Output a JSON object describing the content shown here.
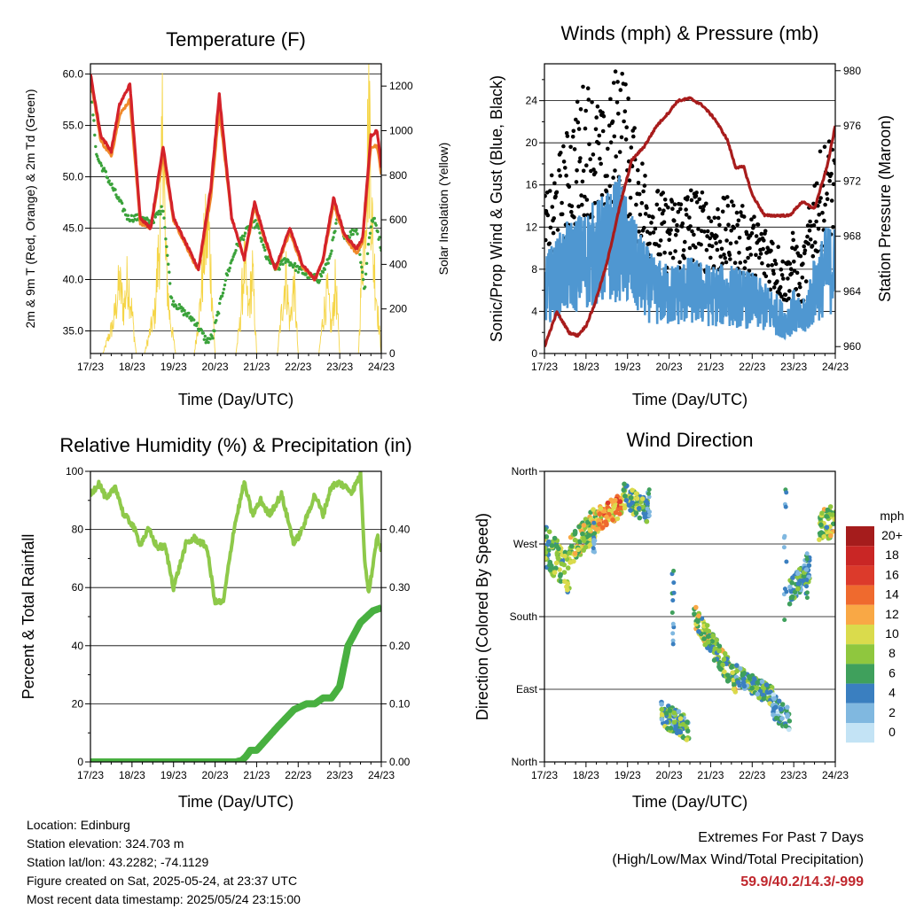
{
  "x_tick_labels": [
    "17/23",
    "18/23",
    "19/23",
    "20/23",
    "21/23",
    "22/23",
    "23/23",
    "24/23"
  ],
  "info": {
    "location": "Location: Edinburg",
    "elevation": "Station elevation: 324.703 m",
    "latlon": "Station lat/lon: 43.2282; -74.1129",
    "created": "Figure created on Sat, 2025-05-24, at 23:37 UTC",
    "recent": "Most recent data timestamp: 2025/05/24 23:15:00"
  },
  "extremes": {
    "title": "Extremes For Past 7 Days",
    "subtitle": "(High/Low/Max Wind/Total Precipitation)",
    "values": "59.9/40.2/14.3/-999"
  },
  "colors": {
    "t2m": "#d4222a",
    "t9m": "#f08a2c",
    "td": "#3aa23a",
    "solar": "#f5d547",
    "gust": "#000000",
    "wind": "#4f97d1",
    "pressure": "#a81c1c",
    "rh": "#8ec94a",
    "precip": "#48b040"
  },
  "chart_data": [
    {
      "type": "line",
      "title": "Temperature (F)",
      "xlabel": "Time (Day/UTC)",
      "ylabel": "2m & 9m T (Red, Orange) & 2m Td (Green)",
      "y2label": "Solar Insolation (Yellow)",
      "xlim": [
        0,
        7
      ],
      "ylim": [
        32.8,
        61.0
      ],
      "y_ticks": [
        "35.0",
        "40.0",
        "45.0",
        "50.0",
        "55.0",
        "60.0"
      ],
      "y2lim": [
        0,
        1300
      ],
      "y2_ticks": [
        "0",
        "200",
        "400",
        "600",
        "800",
        "1000",
        "1200"
      ],
      "grid": "horizontal",
      "series": [
        {
          "key": "t2m",
          "x": [
            0,
            0.25,
            0.5,
            0.7,
            0.95,
            1.2,
            1.45,
            1.75,
            2.0,
            2.3,
            2.6,
            2.9,
            3.1,
            3.4,
            3.7,
            3.95,
            4.2,
            4.45,
            4.8,
            5.1,
            5.4,
            5.6,
            5.85,
            6.1,
            6.4,
            6.55,
            6.75,
            6.9,
            7.0
          ],
          "y": [
            60,
            54,
            52.5,
            57,
            59,
            46,
            45,
            53,
            46,
            43.5,
            41,
            49,
            58,
            46,
            42,
            47.5,
            44,
            41,
            45,
            41.5,
            40,
            42,
            48,
            44.5,
            43,
            44,
            54,
            54.5,
            51
          ]
        },
        {
          "key": "t9m",
          "x": [
            0,
            0.25,
            0.5,
            0.7,
            0.95,
            1.2,
            1.45,
            1.75,
            2.0,
            2.3,
            2.6,
            2.9,
            3.1,
            3.4,
            3.7,
            3.95,
            4.2,
            4.45,
            4.8,
            5.1,
            5.4,
            5.6,
            5.85,
            6.1,
            6.4,
            6.55,
            6.75,
            6.9,
            7.0
          ],
          "y": [
            59.6,
            53.5,
            52,
            56,
            57.5,
            45.5,
            45,
            52,
            45.8,
            43.3,
            40.8,
            48,
            56.5,
            46,
            42,
            47,
            43.8,
            40.9,
            44.6,
            41.3,
            40,
            41.8,
            47.3,
            44.3,
            42.5,
            43.7,
            53,
            53,
            50.3
          ]
        },
        {
          "key": "td",
          "x": [
            0,
            0.15,
            0.4,
            0.65,
            0.9,
            1.2,
            1.45,
            1.75,
            1.95,
            2.2,
            2.5,
            2.8,
            2.95,
            3.25,
            3.5,
            3.8,
            4.0,
            4.25,
            4.5,
            4.7,
            5.0,
            5.2,
            5.5,
            5.75,
            5.95,
            6.15,
            6.4,
            6.6,
            6.7,
            6.8,
            6.9,
            7.0
          ],
          "y": [
            59,
            52,
            50,
            48,
            46,
            46,
            45.5,
            47,
            38,
            37,
            36,
            34,
            34.5,
            40,
            43,
            45,
            45.5,
            42,
            41,
            42,
            41,
            40.5,
            40,
            42,
            46,
            44,
            45,
            39,
            44,
            46,
            45,
            43
          ]
        },
        {
          "key": "solar",
          "x": [
            0,
            0.3,
            0.55,
            0.7,
            0.8,
            0.9,
            1.0,
            1.1,
            1.3,
            1.55,
            1.7,
            1.75,
            1.8,
            1.9,
            2.05,
            2.5,
            2.65,
            2.75,
            2.85,
            3.0,
            3.5,
            3.6,
            3.7,
            3.8,
            3.9,
            4.0,
            4.5,
            4.6,
            4.7,
            4.8,
            4.9,
            5.0,
            5.5,
            5.6,
            5.7,
            5.8,
            5.9,
            6.0,
            6.45,
            6.55,
            6.65,
            6.72,
            6.8,
            6.9,
            7.0
          ],
          "y": [
            0,
            0,
            150,
            350,
            220,
            380,
            200,
            0,
            0,
            200,
            700,
            1300,
            500,
            200,
            0,
            0,
            250,
            550,
            600,
            0,
            0,
            150,
            450,
            200,
            400,
            0,
            0,
            200,
            400,
            150,
            350,
            0,
            0,
            180,
            300,
            120,
            350,
            0,
            0,
            500,
            900,
            1150,
            500,
            250,
            0
          ]
        }
      ]
    },
    {
      "type": "scatter",
      "title": "Winds (mph) & Pressure (mb)",
      "xlabel": "Time (Day/UTC)",
      "ylabel": "Sonic/Prop Wind & Gust (Blue, Black)",
      "y2label": "Station Pressure (Maroon)",
      "xlim": [
        0,
        7
      ],
      "ylim": [
        0,
        27.5
      ],
      "y_ticks": [
        "0",
        "4",
        "8",
        "12",
        "16",
        "20",
        "24"
      ],
      "y2lim": [
        959.5,
        980.5
      ],
      "y2_ticks": [
        "960",
        "964",
        "968",
        "972",
        "976",
        "980"
      ],
      "grid": "horizontal",
      "wind_envelope": {
        "x": [
          0,
          0.5,
          1.0,
          1.5,
          1.8,
          2.2,
          2.6,
          3.0,
          3.5,
          4.0,
          4.5,
          5.0,
          5.5,
          5.8,
          6.0,
          6.2,
          6.5,
          6.8,
          7.0
        ],
        "mean": [
          6,
          8,
          9,
          10,
          11,
          8,
          6,
          5.5,
          6,
          5.5,
          5.5,
          5,
          4,
          3,
          4,
          3,
          6,
          8,
          8
        ]
      },
      "gust_envelope": {
        "x": [
          0,
          0.5,
          1.0,
          1.5,
          1.8,
          2.2,
          2.6,
          3.0,
          3.5,
          4.0,
          4.5,
          5.0,
          5.5,
          5.8,
          6.0,
          6.2,
          6.5,
          6.8,
          7.0
        ],
        "mean": [
          10,
          14,
          18,
          15,
          20,
          14,
          11,
          10,
          11,
          10,
          10,
          9,
          8,
          6,
          8,
          6,
          12,
          14,
          14
        ]
      },
      "pressure": {
        "x": [
          0,
          0.3,
          0.6,
          0.8,
          1.0,
          1.2,
          1.5,
          1.8,
          2.1,
          2.4,
          2.7,
          3.0,
          3.2,
          3.5,
          3.8,
          4.1,
          4.4,
          4.6,
          4.8,
          5.0,
          5.3,
          5.6,
          5.9,
          6.2,
          6.5,
          6.8,
          7.0
        ],
        "y": [
          960,
          962.5,
          961,
          960.8,
          961.5,
          963,
          966,
          970,
          973.5,
          974.5,
          976,
          977,
          977.8,
          978,
          977.5,
          976.5,
          975,
          973,
          973,
          971,
          969.5,
          969.5,
          969.5,
          970.5,
          970,
          973,
          976
        ]
      }
    },
    {
      "type": "line",
      "title": "Relative Humidity (%) & Precipitation (in)",
      "xlabel": "Time (Day/UTC)",
      "ylabel": "Percent & Total Rainfall",
      "xlim": [
        0,
        7
      ],
      "ylim": [
        0,
        100
      ],
      "y_ticks": [
        "0",
        "20",
        "40",
        "60",
        "80",
        "100"
      ],
      "y2lim": [
        0,
        0.5
      ],
      "y2_ticks": [
        "0.00",
        "0.10",
        "0.20",
        "0.30",
        "0.40"
      ],
      "grid": "horizontal",
      "series": [
        {
          "key": "rh",
          "x": [
            0,
            0.2,
            0.4,
            0.6,
            0.8,
            1.0,
            1.2,
            1.4,
            1.6,
            1.8,
            2.0,
            2.3,
            2.5,
            2.8,
            3.0,
            3.2,
            3.45,
            3.7,
            3.9,
            4.1,
            4.3,
            4.6,
            4.9,
            5.1,
            5.4,
            5.6,
            5.8,
            6.0,
            6.3,
            6.5,
            6.6,
            6.7,
            6.8,
            6.9,
            7.0
          ],
          "y": [
            92,
            96,
            90,
            95,
            85,
            82,
            75,
            80,
            74,
            74,
            60,
            75,
            77,
            74,
            55,
            55,
            80,
            96,
            85,
            90,
            85,
            92,
            75,
            80,
            92,
            85,
            95,
            96,
            93,
            99,
            70,
            58,
            68,
            78,
            72
          ]
        },
        {
          "key": "precip",
          "x": [
            0,
            3.0,
            3.5,
            3.65,
            3.75,
            3.85,
            4.0,
            4.5,
            4.9,
            5.2,
            5.4,
            5.5,
            5.6,
            5.8,
            6.0,
            6.2,
            6.5,
            6.8,
            7.0
          ],
          "y": [
            0,
            0,
            0,
            0.003,
            0.01,
            0.02,
            0.02,
            0.06,
            0.09,
            0.1,
            0.1,
            0.105,
            0.11,
            0.11,
            0.13,
            0.2,
            0.24,
            0.26,
            0.265
          ]
        }
      ]
    },
    {
      "type": "scatter",
      "title": "Wind Direction",
      "xlabel": "Time (Day/UTC)",
      "ylabel": "Direction (Colored By Speed)",
      "xlim": [
        0,
        7
      ],
      "ylim": [
        0,
        360
      ],
      "y_ticks": [
        "North",
        "East",
        "South",
        "West",
        "North"
      ],
      "grid": "horizontal",
      "clusters": [
        {
          "x0": 0.0,
          "x1": 0.6,
          "d0": 270,
          "d1": 230,
          "spread": 25,
          "speed": 7
        },
        {
          "x0": 0.6,
          "x1": 1.3,
          "d0": 260,
          "d1": 300,
          "spread": 20,
          "speed": 9
        },
        {
          "x0": 1.3,
          "x1": 1.9,
          "d0": 300,
          "d1": 320,
          "spread": 15,
          "speed": 12
        },
        {
          "x0": 1.9,
          "x1": 2.5,
          "d0": 330,
          "d1": 310,
          "spread": 15,
          "speed": 7
        },
        {
          "x0": 2.8,
          "x1": 3.5,
          "d0": 60,
          "d1": 40,
          "spread": 15,
          "speed": 6
        },
        {
          "x0": 3.6,
          "x1": 4.6,
          "d0": 180,
          "d1": 100,
          "spread": 15,
          "speed": 8
        },
        {
          "x0": 4.6,
          "x1": 5.5,
          "d0": 110,
          "d1": 80,
          "spread": 12,
          "speed": 6
        },
        {
          "x0": 5.5,
          "x1": 5.9,
          "d0": 70,
          "d1": 50,
          "spread": 15,
          "speed": 3
        },
        {
          "x0": 5.9,
          "x1": 6.4,
          "d0": 210,
          "d1": 240,
          "spread": 15,
          "speed": 5
        },
        {
          "x0": 6.6,
          "x1": 7.0,
          "d0": 290,
          "d1": 300,
          "spread": 20,
          "speed": 8
        }
      ]
    }
  ],
  "legend": {
    "title": "mph",
    "labels": [
      "20+",
      "18",
      "16",
      "14",
      "12",
      "10",
      "8",
      "6",
      "4",
      "2",
      "0"
    ],
    "colors": [
      "#a51c1c",
      "#c92625",
      "#dc3a2b",
      "#ef6a2e",
      "#f9a845",
      "#dadb4c",
      "#8fc73e",
      "#3fa05c",
      "#3a7fc0",
      "#80b8e0",
      "#c3e3f5"
    ]
  }
}
